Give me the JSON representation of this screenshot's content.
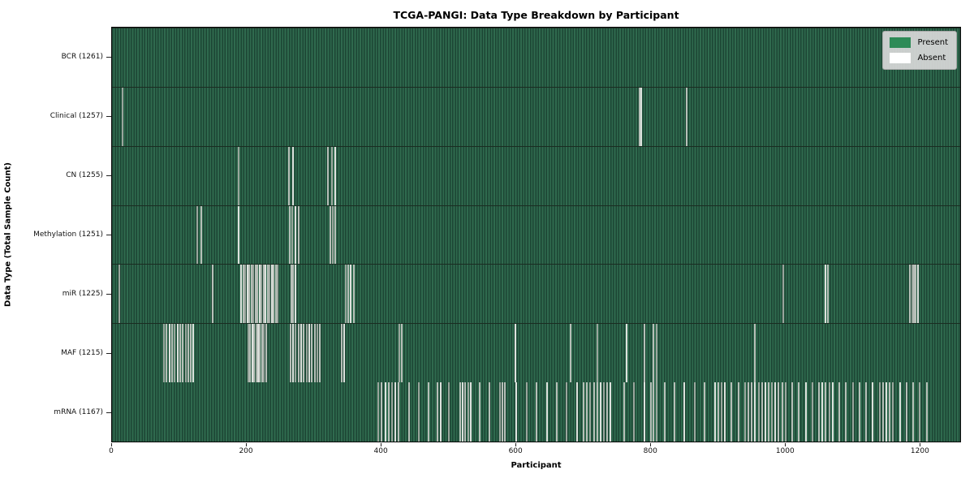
{
  "chart_data": {
    "type": "heatmap",
    "title": "TCGA-PANGI: Data Type Breakdown by Participant",
    "xlabel": "Participant",
    "ylabel": "Data Type (Total Sample Count)",
    "x_ticks": [
      0,
      200,
      400,
      600,
      800,
      1000,
      1200
    ],
    "xlim": [
      0,
      1261
    ],
    "total_participants": 1261,
    "grid": false,
    "legend_position": "upper right",
    "legend": [
      {
        "label": "Present",
        "color": "#2e8b57"
      },
      {
        "label": "Absent",
        "color": "#ffffff"
      }
    ],
    "colors": {
      "present_fill_dark": "#1c4534",
      "present_fill_light": "#2f6a4e",
      "absent_line": "#b7bfb8",
      "row_divider": "#1a2c21",
      "legend_background": "#d9d9d9"
    },
    "rows": [
      {
        "data_type": "BCR",
        "label": "BCR (1261)",
        "present_count": 1261,
        "absent_count": 0,
        "absent_positions": []
      },
      {
        "data_type": "Clinical",
        "label": "Clinical (1257)",
        "present_count": 1257,
        "absent_count": 4,
        "absent_positions": [
          14,
          783,
          786,
          853
        ]
      },
      {
        "data_type": "CN",
        "label": "CN (1255)",
        "present_count": 1255,
        "absent_count": 6,
        "absent_positions": [
          187,
          262,
          268,
          320,
          326,
          331
        ]
      },
      {
        "data_type": "Methylation",
        "label": "Methylation (1251)",
        "present_count": 1251,
        "absent_count": 10,
        "absent_positions": [
          125,
          131,
          187,
          263,
          267,
          271,
          276,
          323,
          327,
          331
        ]
      },
      {
        "data_type": "miR",
        "label": "miR (1225)",
        "present_count": 1225,
        "absent_count": 36,
        "absent_positions": [
          10,
          149,
          191,
          194,
          197,
          200,
          203,
          206,
          209,
          212,
          215,
          218,
          221,
          224,
          227,
          230,
          233,
          236,
          239,
          242,
          245,
          265,
          268,
          271,
          346,
          350,
          354,
          358,
          997,
          1060,
          1063,
          1185,
          1188,
          1191,
          1194,
          1197
        ]
      },
      {
        "data_type": "MAF",
        "label": "MAF (1215)",
        "present_count": 1215,
        "absent_count": 46,
        "absent_positions": [
          76,
          80,
          84,
          88,
          92,
          96,
          100,
          104,
          108,
          112,
          116,
          120,
          201,
          204,
          207,
          210,
          213,
          216,
          219,
          222,
          225,
          228,
          264,
          268,
          272,
          276,
          280,
          284,
          288,
          292,
          296,
          300,
          304,
          308,
          340,
          344,
          426,
          430,
          599,
          680,
          720,
          764,
          790,
          804,
          808,
          955
        ]
      },
      {
        "data_type": "mRNA",
        "label": "mRNA (1167)",
        "present_count": 1167,
        "absent_count": 94,
        "absent_positions": [
          395,
          400,
          405,
          410,
          415,
          420,
          425,
          440,
          455,
          470,
          483,
          487,
          500,
          516,
          520,
          524,
          528,
          532,
          545,
          560,
          575,
          579,
          583,
          600,
          615,
          630,
          645,
          660,
          675,
          690,
          700,
          705,
          710,
          715,
          720,
          725,
          730,
          735,
          740,
          760,
          775,
          790,
          800,
          804,
          808,
          820,
          835,
          850,
          865,
          880,
          895,
          900,
          905,
          910,
          920,
          930,
          940,
          945,
          950,
          955,
          960,
          965,
          970,
          975,
          980,
          985,
          990,
          995,
          1000,
          1010,
          1020,
          1030,
          1040,
          1050,
          1055,
          1060,
          1065,
          1070,
          1080,
          1090,
          1100,
          1110,
          1120,
          1130,
          1140,
          1145,
          1150,
          1155,
          1160,
          1170,
          1180,
          1190,
          1200,
          1210
        ]
      }
    ]
  }
}
